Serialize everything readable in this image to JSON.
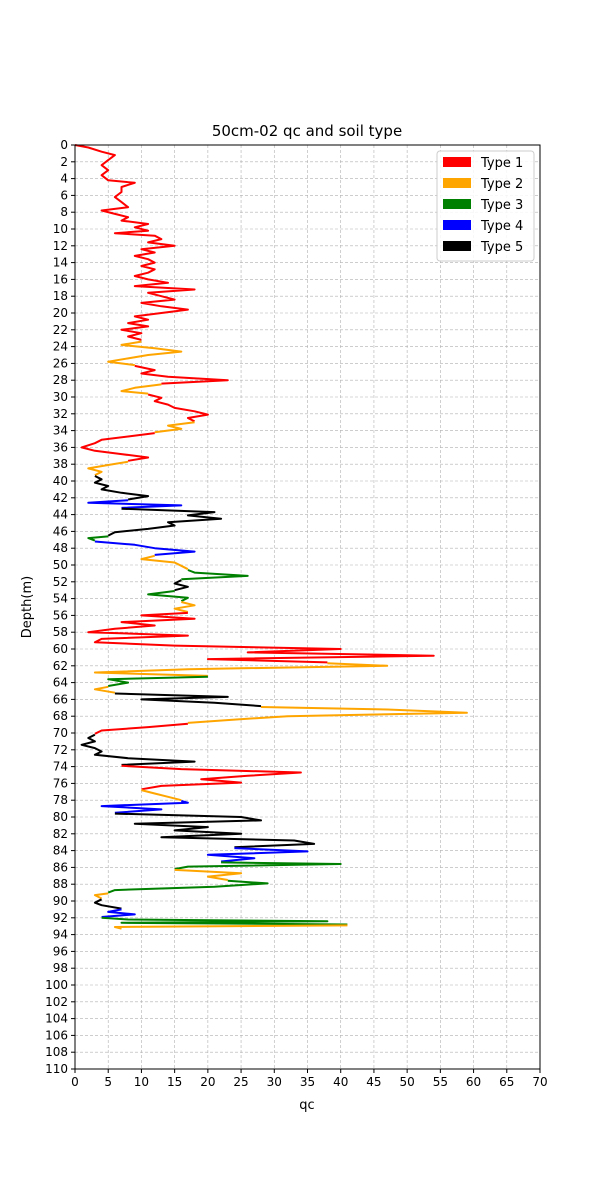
{
  "chart_data": {
    "type": "line",
    "title": "50cm-02 qc and soil type",
    "xlabel": "qc",
    "ylabel": "Depth(m)",
    "xlim": [
      0,
      70
    ],
    "ylim": [
      110,
      0
    ],
    "y_inverted": true,
    "grid": true,
    "legend_position": "top-right",
    "xticks": [
      0,
      5,
      10,
      15,
      20,
      25,
      30,
      35,
      40,
      45,
      50,
      55,
      60,
      65,
      70
    ],
    "yticks": [
      0,
      2,
      4,
      6,
      8,
      10,
      12,
      14,
      16,
      18,
      20,
      22,
      24,
      26,
      28,
      30,
      32,
      34,
      36,
      38,
      40,
      42,
      44,
      46,
      48,
      50,
      52,
      54,
      56,
      58,
      60,
      62,
      64,
      66,
      68,
      70,
      72,
      74,
      76,
      78,
      80,
      82,
      84,
      86,
      88,
      90,
      92,
      94,
      96,
      98,
      100,
      102,
      104,
      106,
      108,
      110
    ],
    "legend": [
      {
        "name": "Type 1",
        "color": "#ff0000"
      },
      {
        "name": "Type 2",
        "color": "#ffa500"
      },
      {
        "name": "Type 3",
        "color": "#008000"
      },
      {
        "name": "Type 4",
        "color": "#0000ff"
      },
      {
        "name": "Type 5",
        "color": "#000000"
      }
    ],
    "segments": [
      {
        "type": 1,
        "points": [
          [
            0,
            0
          ],
          [
            2,
            0.3
          ],
          [
            4,
            0.8
          ],
          [
            6,
            1.2
          ],
          [
            5,
            1.8
          ],
          [
            4,
            2.4
          ],
          [
            5,
            3
          ],
          [
            4,
            3.6
          ],
          [
            5,
            4.2
          ],
          [
            9,
            4.5
          ],
          [
            7,
            5
          ],
          [
            7,
            5.6
          ],
          [
            6,
            6.2
          ],
          [
            7,
            6.8
          ],
          [
            8,
            7.4
          ],
          [
            4,
            7.8
          ],
          [
            6,
            8.2
          ],
          [
            8,
            8.6
          ],
          [
            7,
            9
          ],
          [
            11,
            9.4
          ],
          [
            9,
            9.8
          ],
          [
            11,
            10.2
          ],
          [
            6,
            10.5
          ],
          [
            12,
            10.8
          ],
          [
            13,
            11.2
          ],
          [
            11,
            11.6
          ],
          [
            15,
            12
          ],
          [
            10,
            12.4
          ],
          [
            12,
            12.8
          ],
          [
            9,
            13.2
          ],
          [
            11,
            13.6
          ],
          [
            12,
            14
          ],
          [
            10,
            14.4
          ],
          [
            12,
            14.8
          ],
          [
            11,
            15.2
          ],
          [
            9,
            15.6
          ],
          [
            11,
            16
          ],
          [
            14,
            16.4
          ],
          [
            9,
            16.8
          ],
          [
            18,
            17.2
          ],
          [
            11,
            17.6
          ],
          [
            13,
            18
          ],
          [
            15,
            18.4
          ],
          [
            10,
            18.8
          ],
          [
            13,
            19.2
          ],
          [
            17,
            19.6
          ],
          [
            13,
            20
          ],
          [
            9,
            20.4
          ],
          [
            11,
            20.8
          ],
          [
            8,
            21.2
          ],
          [
            11,
            21.6
          ],
          [
            7,
            22
          ],
          [
            10,
            22.4
          ],
          [
            8,
            22.8
          ],
          [
            10,
            23.2
          ]
        ]
      },
      {
        "type": 2,
        "points": [
          [
            10,
            23.4
          ],
          [
            7,
            23.8
          ],
          [
            12,
            24.2
          ],
          [
            16,
            24.6
          ],
          [
            11,
            25
          ],
          [
            8,
            25.4
          ],
          [
            5,
            25.8
          ],
          [
            9,
            26.2
          ]
        ]
      },
      {
        "type": 1,
        "points": [
          [
            9,
            26.3
          ],
          [
            12,
            26.8
          ],
          [
            10,
            27.2
          ],
          [
            14,
            27.6
          ],
          [
            23,
            28
          ],
          [
            13,
            28.4
          ]
        ]
      },
      {
        "type": 2,
        "points": [
          [
            13,
            28.5
          ],
          [
            9,
            28.9
          ],
          [
            7,
            29.3
          ],
          [
            11,
            29.6
          ]
        ]
      },
      {
        "type": 1,
        "points": [
          [
            11,
            29.7
          ],
          [
            13,
            30.1
          ],
          [
            12,
            30.5
          ],
          [
            14,
            30.9
          ],
          [
            15,
            31.3
          ],
          [
            18,
            31.7
          ],
          [
            20,
            32.1
          ],
          [
            17,
            32.5
          ],
          [
            18,
            32.9
          ]
        ]
      },
      {
        "type": 2,
        "points": [
          [
            18,
            33
          ],
          [
            14,
            33.4
          ],
          [
            16,
            33.8
          ],
          [
            12,
            34.2
          ]
        ]
      },
      {
        "type": 1,
        "points": [
          [
            12,
            34.3
          ],
          [
            8,
            34.7
          ],
          [
            4,
            35.1
          ],
          [
            3,
            35.5
          ],
          [
            1,
            36
          ],
          [
            3,
            36.4
          ],
          [
            7,
            36.8
          ],
          [
            11,
            37.2
          ],
          [
            8,
            37.6
          ]
        ]
      },
      {
        "type": 2,
        "points": [
          [
            8,
            37.7
          ],
          [
            5,
            38.1
          ],
          [
            2,
            38.5
          ],
          [
            4,
            38.9
          ],
          [
            3,
            39.3
          ]
        ]
      },
      {
        "type": 5,
        "points": [
          [
            3,
            39.4
          ],
          [
            4,
            39.8
          ],
          [
            3,
            40.2
          ],
          [
            5,
            40.6
          ],
          [
            4,
            41
          ],
          [
            7,
            41.4
          ],
          [
            11,
            41.8
          ],
          [
            8,
            42.2
          ]
        ]
      },
      {
        "type": 4,
        "points": [
          [
            8,
            42.3
          ],
          [
            2,
            42.6
          ],
          [
            16,
            42.9
          ],
          [
            7,
            43.2
          ]
        ]
      },
      {
        "type": 5,
        "points": [
          [
            7,
            43.3
          ],
          [
            21,
            43.7
          ],
          [
            17,
            44.1
          ],
          [
            22,
            44.5
          ],
          [
            14,
            44.9
          ],
          [
            15,
            45.3
          ],
          [
            11,
            45.7
          ],
          [
            6,
            46.1
          ],
          [
            5,
            46.5
          ]
        ]
      },
      {
        "type": 3,
        "points": [
          [
            5,
            46.6
          ],
          [
            2,
            46.8
          ],
          [
            3,
            47.1
          ]
        ]
      },
      {
        "type": 4,
        "points": [
          [
            3,
            47.2
          ],
          [
            9,
            47.6
          ],
          [
            12,
            48
          ],
          [
            18,
            48.4
          ],
          [
            12,
            48.8
          ]
        ]
      },
      {
        "type": 2,
        "points": [
          [
            12,
            48.9
          ],
          [
            10,
            49.3
          ],
          [
            15,
            49.7
          ],
          [
            16,
            50.1
          ],
          [
            17,
            50.5
          ]
        ]
      },
      {
        "type": 3,
        "points": [
          [
            17,
            50.6
          ],
          [
            18,
            50.9
          ],
          [
            26,
            51.3
          ],
          [
            16,
            51.7
          ]
        ]
      },
      {
        "type": 5,
        "points": [
          [
            16,
            51.8
          ],
          [
            15,
            52.2
          ],
          [
            17,
            52.6
          ],
          [
            15,
            53
          ]
        ]
      },
      {
        "type": 3,
        "points": [
          [
            15,
            53.1
          ],
          [
            11,
            53.5
          ],
          [
            17,
            53.9
          ],
          [
            16,
            54.3
          ]
        ]
      },
      {
        "type": 2,
        "points": [
          [
            16,
            54.4
          ],
          [
            18,
            54.8
          ],
          [
            15,
            55.2
          ],
          [
            17,
            55.6
          ]
        ]
      },
      {
        "type": 1,
        "points": [
          [
            17,
            55.7
          ],
          [
            10,
            56
          ],
          [
            18,
            56.4
          ],
          [
            7,
            56.8
          ],
          [
            12,
            57.2
          ],
          [
            6,
            57.6
          ],
          [
            2,
            58
          ],
          [
            17,
            58.4
          ],
          [
            4,
            58.8
          ],
          [
            3,
            59.2
          ],
          [
            15,
            59.6
          ],
          [
            40,
            60
          ],
          [
            26,
            60.4
          ],
          [
            54,
            60.8
          ],
          [
            20,
            61.2
          ],
          [
            38,
            61.6
          ]
        ]
      },
      {
        "type": 2,
        "points": [
          [
            38,
            61.7
          ],
          [
            47,
            62
          ],
          [
            17,
            62.4
          ],
          [
            3,
            62.8
          ],
          [
            20,
            63.2
          ]
        ]
      },
      {
        "type": 3,
        "points": [
          [
            20,
            63.3
          ],
          [
            5,
            63.6
          ],
          [
            8,
            64
          ],
          [
            5,
            64.4
          ]
        ]
      },
      {
        "type": 2,
        "points": [
          [
            5,
            64.5
          ],
          [
            3,
            64.8
          ],
          [
            6,
            65.2
          ]
        ]
      },
      {
        "type": 5,
        "points": [
          [
            6,
            65.3
          ],
          [
            23,
            65.7
          ],
          [
            10,
            66
          ],
          [
            21,
            66.4
          ],
          [
            28,
            66.8
          ]
        ]
      },
      {
        "type": 2,
        "points": [
          [
            28,
            66.9
          ],
          [
            47,
            67.2
          ],
          [
            59,
            67.6
          ],
          [
            32,
            68
          ],
          [
            24,
            68.4
          ],
          [
            17,
            68.8
          ]
        ]
      },
      {
        "type": 1,
        "points": [
          [
            17,
            68.9
          ],
          [
            11,
            69.3
          ],
          [
            4,
            69.7
          ],
          [
            3,
            70.1
          ]
        ]
      },
      {
        "type": 5,
        "points": [
          [
            3,
            70.2
          ],
          [
            2,
            70.6
          ],
          [
            3,
            71
          ],
          [
            1,
            71.4
          ],
          [
            3,
            71.8
          ],
          [
            4,
            72.2
          ],
          [
            3,
            72.6
          ],
          [
            8,
            73
          ],
          [
            18,
            73.4
          ],
          [
            7,
            73.8
          ]
        ]
      },
      {
        "type": 1,
        "points": [
          [
            7,
            73.9
          ],
          [
            16,
            74.3
          ],
          [
            34,
            74.7
          ],
          [
            26,
            75.1
          ],
          [
            19,
            75.5
          ],
          [
            25,
            75.9
          ],
          [
            13,
            76.3
          ],
          [
            10,
            76.7
          ]
        ]
      },
      {
        "type": 2,
        "points": [
          [
            10,
            76.8
          ],
          [
            12,
            77.2
          ],
          [
            14,
            77.6
          ],
          [
            16,
            78
          ]
        ]
      },
      {
        "type": 4,
        "points": [
          [
            16,
            78.1
          ],
          [
            17,
            78.3
          ],
          [
            4,
            78.7
          ],
          [
            13,
            79.1
          ],
          [
            6,
            79.5
          ]
        ]
      },
      {
        "type": 5,
        "points": [
          [
            6,
            79.6
          ],
          [
            25,
            80
          ],
          [
            28,
            80.4
          ],
          [
            9,
            80.8
          ],
          [
            20,
            81.2
          ],
          [
            15,
            81.6
          ],
          [
            25,
            82
          ],
          [
            13,
            82.4
          ],
          [
            33,
            82.8
          ],
          [
            36,
            83.2
          ],
          [
            24,
            83.6
          ]
        ]
      },
      {
        "type": 4,
        "points": [
          [
            24,
            83.7
          ],
          [
            35,
            84.1
          ],
          [
            20,
            84.5
          ],
          [
            27,
            84.9
          ],
          [
            22,
            85.3
          ]
        ]
      },
      {
        "type": 3,
        "points": [
          [
            22,
            85.4
          ],
          [
            40,
            85.6
          ],
          [
            17,
            85.9
          ],
          [
            15,
            86.2
          ]
        ]
      },
      {
        "type": 2,
        "points": [
          [
            15,
            86.3
          ],
          [
            25,
            86.7
          ],
          [
            20,
            87.1
          ],
          [
            23,
            87.5
          ]
        ]
      },
      {
        "type": 3,
        "points": [
          [
            23,
            87.6
          ],
          [
            29,
            87.9
          ],
          [
            21,
            88.3
          ],
          [
            6,
            88.7
          ],
          [
            5,
            89
          ]
        ]
      },
      {
        "type": 2,
        "points": [
          [
            5,
            89.1
          ],
          [
            3,
            89.3
          ],
          [
            4,
            89.7
          ]
        ]
      },
      {
        "type": 5,
        "points": [
          [
            4,
            89.8
          ],
          [
            3,
            90.2
          ],
          [
            4,
            90.5
          ],
          [
            7,
            90.9
          ]
        ]
      },
      {
        "type": 4,
        "points": [
          [
            7,
            91
          ],
          [
            5,
            91.3
          ],
          [
            9,
            91.6
          ],
          [
            4,
            91.9
          ]
        ]
      },
      {
        "type": 3,
        "points": [
          [
            4,
            92
          ],
          [
            8,
            92.2
          ],
          [
            38,
            92.4
          ],
          [
            7,
            92.6
          ],
          [
            41,
            92.8
          ]
        ]
      },
      {
        "type": 2,
        "points": [
          [
            41,
            92.9
          ],
          [
            6,
            93.1
          ],
          [
            7,
            93.3
          ]
        ]
      }
    ]
  }
}
